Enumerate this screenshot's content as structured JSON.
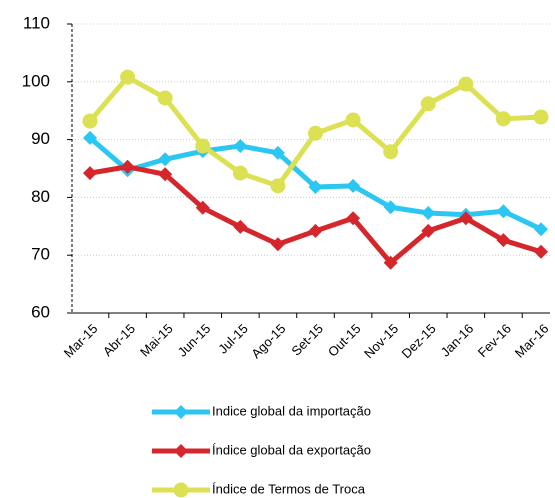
{
  "chart_data": {
    "type": "line",
    "categories": [
      "Mar-15",
      "Abr-15",
      "Mai-15",
      "Jun-15",
      "Jul-15",
      "Ago-15",
      "Set-15",
      "Out-15",
      "Nov-15",
      "Dez-15",
      "Jan-16",
      "Fev-16",
      "Mar-16"
    ],
    "series": [
      {
        "name": "Indice global da importação",
        "color": "#2cc6f2",
        "marker": "diamond",
        "values": [
          90.3,
          84.7,
          86.6,
          88,
          88.9,
          87.7,
          81.8,
          82,
          78.3,
          77.3,
          77,
          77.6,
          74.5
        ]
      },
      {
        "name": "Índice global da exportação",
        "color": "#d4262b",
        "marker": "diamond",
        "values": [
          84.2,
          85.3,
          84,
          78.2,
          74.9,
          71.9,
          74.2,
          76.4,
          68.7,
          74.2,
          76.4,
          72.6,
          70.6
        ]
      },
      {
        "name": "Índice de Termos de Troca",
        "color": "#dce154",
        "marker": "circle",
        "values": [
          93.2,
          100.8,
          97.2,
          88.9,
          84.2,
          82,
          91.1,
          93.4,
          87.9,
          96.2,
          99.6,
          93.6,
          93.9
        ]
      }
    ],
    "ylim": [
      60,
      110
    ],
    "yticks": [
      60,
      70,
      80,
      90,
      100,
      110
    ],
    "grid": true
  }
}
